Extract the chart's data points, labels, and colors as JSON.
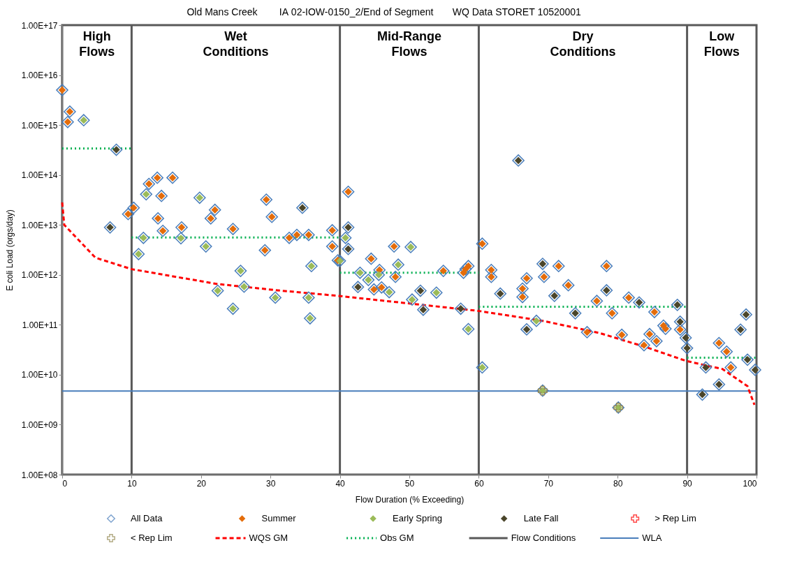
{
  "chart_data": {
    "type": "scatter",
    "title": "Old Mans Creek        IA 02-IOW-0150_2/End of Segment       WQ Data STORET 10520001",
    "xlabel": "Flow Duration (% Exceeding)",
    "ylabel": "E coli Load (orgs/day)",
    "xlim": [
      0,
      100
    ],
    "xticks": [
      0,
      10,
      20,
      30,
      40,
      50,
      60,
      70,
      80,
      90,
      100
    ],
    "ylim": [
      100000000,
      100000000000000000
    ],
    "log": "y",
    "yticks": [
      {
        "value": 100000000,
        "label": "1.00E+08"
      },
      {
        "value": 1000000000,
        "label": "1.00E+09"
      },
      {
        "value": 10000000000,
        "label": "1.00E+10"
      },
      {
        "value": 100000000000,
        "label": "1.00E+11"
      },
      {
        "value": 1000000000000,
        "label": "1.00E+12"
      },
      {
        "value": 10000000000000,
        "label": "1.00E+13"
      },
      {
        "value": 100000000000000,
        "label": "1.00E+14"
      },
      {
        "value": 1000000000000000,
        "label": "1.00E+15"
      },
      {
        "value": 10000000000000000,
        "label": "1.00E+16"
      },
      {
        "value": 100000000000000000,
        "label": "1.00E+17"
      }
    ],
    "legend": "bottom",
    "series": [
      {
        "name": "All Data",
        "marker": "diamond",
        "color": "#4a7ebb",
        "x": [
          0,
          1.1,
          0.8,
          12.5,
          13.7,
          15.9,
          14.3,
          13.8,
          14.5,
          10.3,
          9.5,
          17.2,
          22.0,
          21.4,
          24.6,
          29.4,
          30.2,
          29.2,
          32.7,
          33.8,
          35.5,
          38.9,
          38.9,
          39.7,
          41.2,
          44.5,
          47.8,
          45.7,
          48.0,
          44.9,
          46.0,
          54.9,
          57.8,
          58.1,
          58.5,
          60.5,
          61.8,
          61.8,
          66.9,
          66.3,
          66.3,
          69.4,
          71.5,
          72.9,
          77.0,
          78.4,
          79.2,
          81.6,
          75.6,
          80.6,
          85.3,
          86.6,
          86.9,
          84.6,
          85.6,
          83.8,
          89.0,
          94.6,
          95.7,
          96.3,
          3.1,
          12.1,
          19.8,
          11.7,
          17.1,
          11.0,
          20.7,
          25.7,
          26.2,
          22.4,
          24.6,
          30.7,
          35.9,
          35.5,
          35.7,
          40.8,
          40.0,
          42.9,
          44.1,
          45.6,
          48.4,
          50.2,
          47.1,
          50.4,
          53.9,
          58.5,
          60.5,
          68.3,
          69.2,
          80.1,
          7.8,
          6.9,
          34.6,
          41.2,
          41.2,
          42.6,
          51.6,
          52.0,
          57.4,
          65.7,
          63.1,
          69.2,
          70.9,
          73.9,
          66.9,
          78.4,
          83.1,
          88.6,
          89.0,
          89.8,
          90.0,
          92.7,
          92.2,
          94.6,
          97.7,
          98.5,
          98.7,
          99.8
        ],
        "values": [
          5000000000000000.0,
          1850000000000000.0,
          1150000000000000.0,
          66000000000000.0,
          88000000000000.0,
          88000000000000.0,
          38000000000000.0,
          13500000000000.0,
          7600000000000.0,
          22000000000000.0,
          16500000000000.0,
          8900000000000.0,
          20000000000000.0,
          13500000000000.0,
          8300000000000.0,
          32000000000000.0,
          14500000000000.0,
          3100000000000.0,
          5500000000000.0,
          6300000000000.0,
          6300000000000.0,
          7800000000000.0,
          3700000000000.0,
          1950000000000.0,
          46000000000000.0,
          2100000000000.0,
          3700000000000.0,
          1250000000000.0,
          910000000000.0,
          510000000000.0,
          560000000000.0,
          1200000000000.0,
          1100000000000.0,
          1300000000000.0,
          1500000000000.0,
          4200000000000.0,
          1250000000000.0,
          910000000000.0,
          850000000000.0,
          530000000000.0,
          360000000000.0,
          910000000000.0,
          1500000000000.0,
          620000000000.0,
          300000000000.0,
          1500000000000.0,
          170000000000.0,
          350000000000.0,
          71000000000.0,
          63000000000.0,
          180000000000.0,
          96000000000.0,
          83000000000.0,
          65000000000.0,
          47000000000.0,
          39000000000.0,
          80000000000.0,
          43000000000.0,
          29000000000.0,
          14000000000.0,
          1250000000000000.0,
          41000000000000.0,
          35000000000000.0,
          5500000000000.0,
          5400000000000.0,
          2600000000000.0,
          3700000000000.0,
          1200000000000.0,
          580000000000.0,
          480000000000.0,
          210000000000.0,
          350000000000.0,
          1500000000000.0,
          350000000000.0,
          135000000000.0,
          5500000000000.0,
          1900000000000.0,
          1100000000000.0,
          790000000000.0,
          1000000000000.0,
          1600000000000.0,
          3600000000000.0,
          450000000000.0,
          320000000000.0,
          440000000000.0,
          82000000000.0,
          14000000000.0,
          120000000000.0,
          4800000000.0,
          2200000000.0,
          320000000000000.0,
          8900000000000.0,
          22000000000000.0,
          8900000000000.0,
          3300000000000.0,
          570000000000.0,
          480000000000.0,
          200000000000.0,
          210000000000.0,
          195000000000000.0,
          420000000000.0,
          1660000000000.0,
          380000000000.0,
          170000000000.0,
          81000000000.0,
          490000000000.0,
          280000000000.0,
          250000000000.0,
          115000000000.0,
          55000000000.0,
          34000000000.0,
          14000000000.0,
          4000000000.0,
          6400000000.0,
          80000000000.0,
          160000000000.0,
          20000000000.0,
          12500000000.0
        ]
      },
      {
        "name": "Summer",
        "marker": "diamond",
        "color": "#e46c0a",
        "x": [
          0,
          1.1,
          0.8,
          12.5,
          13.7,
          15.9,
          14.3,
          13.8,
          14.5,
          10.3,
          9.5,
          17.2,
          22.0,
          21.4,
          24.6,
          29.4,
          30.2,
          29.2,
          32.7,
          33.8,
          35.5,
          38.9,
          38.9,
          39.7,
          41.2,
          44.5,
          47.8,
          45.7,
          48.0,
          44.9,
          46.0,
          54.9,
          57.8,
          58.1,
          58.5,
          60.5,
          61.8,
          61.8,
          66.9,
          66.3,
          66.3,
          69.4,
          71.5,
          72.9,
          77.0,
          78.4,
          79.2,
          81.6,
          75.6,
          80.6,
          85.3,
          86.6,
          86.9,
          84.6,
          85.6,
          83.8,
          89.0,
          94.6,
          95.7,
          96.3
        ],
        "values": [
          5000000000000000.0,
          1850000000000000.0,
          1150000000000000.0,
          66000000000000.0,
          88000000000000.0,
          88000000000000.0,
          38000000000000.0,
          13500000000000.0,
          7600000000000.0,
          22000000000000.0,
          16500000000000.0,
          8900000000000.0,
          20000000000000.0,
          13500000000000.0,
          8300000000000.0,
          32000000000000.0,
          14500000000000.0,
          3100000000000.0,
          5500000000000.0,
          6300000000000.0,
          6300000000000.0,
          7800000000000.0,
          3700000000000.0,
          1950000000000.0,
          46000000000000.0,
          2100000000000.0,
          3700000000000.0,
          1250000000000.0,
          910000000000.0,
          510000000000.0,
          560000000000.0,
          1200000000000.0,
          1100000000000.0,
          1300000000000.0,
          1500000000000.0,
          4200000000000.0,
          1250000000000.0,
          910000000000.0,
          850000000000.0,
          530000000000.0,
          360000000000.0,
          910000000000.0,
          1500000000000.0,
          620000000000.0,
          300000000000.0,
          1500000000000.0,
          170000000000.0,
          350000000000.0,
          71000000000.0,
          63000000000.0,
          180000000000.0,
          96000000000.0,
          83000000000.0,
          65000000000.0,
          47000000000.0,
          39000000000.0,
          80000000000.0,
          43000000000.0,
          29000000000.0,
          14000000000.0
        ]
      },
      {
        "name": "Early Spring",
        "marker": "diamond",
        "color": "#9bbb59",
        "x": [
          3.1,
          12.1,
          19.8,
          11.7,
          17.1,
          11.0,
          20.7,
          25.7,
          26.2,
          22.4,
          24.6,
          30.7,
          35.9,
          35.5,
          35.7,
          40.8,
          40.0,
          42.9,
          44.1,
          45.6,
          48.4,
          50.2,
          47.1,
          50.4,
          53.9,
          58.5,
          60.5,
          68.3,
          69.2,
          80.1
        ],
        "values": [
          1250000000000000.0,
          41000000000000.0,
          35000000000000.0,
          5500000000000.0,
          5400000000000.0,
          2600000000000.0,
          3700000000000.0,
          1200000000000.0,
          580000000000.0,
          480000000000.0,
          210000000000.0,
          350000000000.0,
          1500000000000.0,
          350000000000.0,
          135000000000.0,
          5500000000000.0,
          1900000000000.0,
          1100000000000.0,
          790000000000.0,
          1000000000000.0,
          1600000000000.0,
          3600000000000.0,
          450000000000.0,
          320000000000.0,
          440000000000.0,
          82000000000.0,
          14000000000.0,
          120000000000.0,
          4800000000.0,
          2200000000.0
        ]
      },
      {
        "name": "Late Fall",
        "marker": "diamond",
        "color": "#4a452a",
        "x": [
          7.8,
          6.9,
          34.6,
          41.2,
          41.2,
          42.6,
          51.6,
          52.0,
          57.4,
          65.7,
          63.1,
          69.2,
          70.9,
          73.9,
          66.9,
          78.4,
          83.1,
          88.6,
          89.0,
          89.8,
          90.0,
          92.7,
          92.2,
          94.6,
          97.7,
          98.5,
          98.7,
          99.8
        ],
        "values": [
          320000000000000.0,
          8900000000000.0,
          22000000000000.0,
          8900000000000.0,
          3300000000000.0,
          570000000000.0,
          480000000000.0,
          200000000000.0,
          210000000000.0,
          195000000000000.0,
          420000000000.0,
          1660000000000.0,
          380000000000.0,
          170000000000.0,
          81000000000.0,
          490000000000.0,
          280000000000.0,
          250000000000.0,
          115000000000.0,
          55000000000.0,
          34000000000.0,
          14000000000.0,
          4000000000.0,
          6400000000.0,
          80000000000.0,
          160000000000.0,
          20000000000.0,
          12500000000.0
        ]
      },
      {
        "name": "> Rep Lim",
        "marker": "cross",
        "color": "#ff0000"
      },
      {
        "name": "< Rep Lim",
        "marker": "cross",
        "color": "#948a54",
        "x": [
          69.2,
          80.1
        ],
        "values": [
          4800000000.0,
          2200000000.0
        ]
      },
      {
        "name": "WQS GM",
        "type": "line",
        "marker": "none",
        "line_style": "dashed",
        "color": "#ff0000",
        "x": [
          0,
          0.3,
          4.8,
          10,
          22.2,
          31,
          39.7,
          59.9,
          69.2,
          77.3,
          84,
          89.8,
          95.1,
          98.7,
          99.7
        ],
        "values": [
          28000000000000.0,
          10000000000000.0,
          2200000000000.0,
          1300000000000.0,
          660000000000.0,
          490000000000.0,
          380000000000.0,
          190000000000.0,
          120000000000.0,
          69000000000.0,
          36000000000.0,
          19000000000.0,
          13000000000.0,
          5900000000.0,
          2500000000.0
        ]
      },
      {
        "name": "Obs GM",
        "type": "line",
        "marker": "none",
        "line_style": "dotted",
        "color": "#00b050",
        "x": [
          0,
          10
        ],
        "values": [
          340000000000000.0,
          340000000000000.0
        ]
      },
      {
        "type": "line",
        "marker": "none",
        "line_style": "dotted",
        "color": "#00b050",
        "x": [
          10,
          40
        ],
        "values": [
          5600000000000.0,
          5600000000000.0
        ]
      },
      {
        "type": "line",
        "marker": "none",
        "line_style": "dotted",
        "color": "#00b050",
        "x": [
          40,
          60
        ],
        "values": [
          1100000000000.0,
          1100000000000.0
        ]
      },
      {
        "type": "line",
        "marker": "none",
        "line_style": "dotted",
        "color": "#00b050",
        "x": [
          60,
          90
        ],
        "values": [
          230000000000.0,
          230000000000.0
        ]
      },
      {
        "type": "line",
        "marker": "none",
        "line_style": "dotted",
        "color": "#00b050",
        "x": [
          90,
          100
        ],
        "values": [
          22000000000.0,
          22000000000.0
        ]
      }
    ],
    "ref_lines": [
      {
        "axis": "x",
        "value": 10,
        "color": "#595959",
        "label": "Flow Conditions"
      },
      {
        "axis": "x",
        "value": 40,
        "color": "#595959"
      },
      {
        "axis": "x",
        "value": 60,
        "color": "#595959"
      },
      {
        "axis": "x",
        "value": 90,
        "color": "#595959"
      },
      {
        "axis": "y",
        "value": 4700000000.0,
        "color": "#4a7ebb",
        "label": "WLA"
      }
    ],
    "annotations": [
      "High Flows",
      "Wet Conditions",
      "Mid-Range Flows",
      "Dry Conditions",
      "Low Flows"
    ]
  }
}
